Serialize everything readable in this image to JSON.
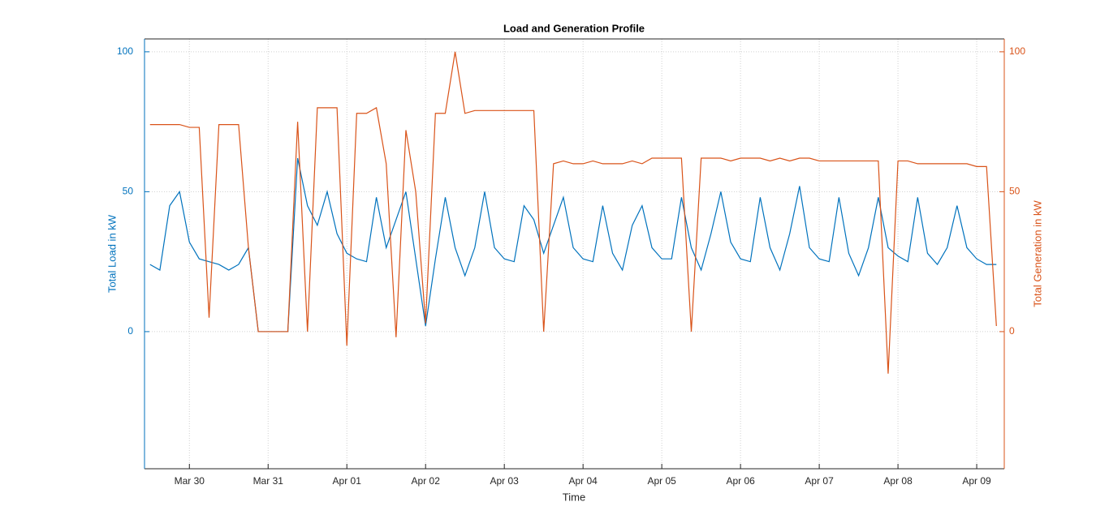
{
  "chart_data": {
    "type": "line",
    "title": "Load and Generation Profile",
    "xlabel": "Time",
    "ylabel": "Total Load in kW",
    "y2label": "Total Generation in kW",
    "x": [
      -0.5,
      -0.375,
      -0.25,
      -0.125,
      0,
      0.125,
      0.25,
      0.375,
      0.5,
      0.625,
      0.75,
      0.875,
      1,
      1.125,
      1.25,
      1.375,
      1.5,
      1.625,
      1.75,
      1.875,
      2,
      2.125,
      2.25,
      2.375,
      2.5,
      2.625,
      2.75,
      2.875,
      3,
      3.125,
      3.25,
      3.375,
      3.5,
      3.625,
      3.75,
      3.875,
      4,
      4.125,
      4.25,
      4.375,
      4.5,
      4.625,
      4.75,
      4.875,
      5,
      5.125,
      5.25,
      5.375,
      5.5,
      5.625,
      5.75,
      5.875,
      6,
      6.125,
      6.25,
      6.375,
      6.5,
      6.625,
      6.75,
      6.875,
      7,
      7.125,
      7.25,
      7.375,
      7.5,
      7.625,
      7.75,
      7.875,
      8,
      8.125,
      8.25,
      8.375,
      8.5,
      8.625,
      8.75,
      8.875,
      9,
      9.125,
      9.25,
      9.375,
      9.5,
      9.625,
      9.75,
      9.875,
      10,
      10.125,
      10.25
    ],
    "series": [
      {
        "name": "Total Load",
        "color": "#0072BD",
        "axis": "y",
        "values": [
          24,
          22,
          45,
          50,
          32,
          26,
          25,
          24,
          22,
          24,
          30,
          0,
          0,
          0,
          0,
          62,
          45,
          38,
          50,
          35,
          28,
          26,
          25,
          48,
          30,
          40,
          50,
          26,
          2,
          26,
          48,
          30,
          20,
          30,
          50,
          30,
          26,
          25,
          45,
          40,
          28,
          38,
          48,
          30,
          26,
          25,
          45,
          28,
          22,
          38,
          45,
          30,
          26,
          26,
          48,
          30,
          22,
          35,
          50,
          32,
          26,
          25,
          48,
          30,
          22,
          35,
          52,
          30,
          26,
          25,
          48,
          28,
          20,
          30,
          48,
          30,
          27,
          25,
          48,
          28,
          24,
          30,
          45,
          30,
          26,
          24,
          24
        ]
      },
      {
        "name": "Total Generation",
        "color": "#D95319",
        "axis": "y2",
        "values": [
          74,
          74,
          74,
          74,
          73,
          73,
          5,
          74,
          74,
          74,
          30,
          0,
          0,
          0,
          0,
          75,
          0,
          80,
          80,
          80,
          -5,
          78,
          78,
          80,
          60,
          -2,
          72,
          50,
          3,
          78,
          78,
          100,
          78,
          79,
          79,
          79,
          79,
          79,
          79,
          79,
          0,
          60,
          61,
          60,
          60,
          61,
          60,
          60,
          60,
          61,
          60,
          62,
          62,
          62,
          62,
          0,
          62,
          62,
          62,
          61,
          62,
          62,
          62,
          61,
          62,
          61,
          62,
          62,
          61,
          61,
          61,
          61,
          61,
          61,
          61,
          -15,
          61,
          61,
          60,
          60,
          60,
          60,
          60,
          60,
          59,
          59,
          2
        ]
      }
    ],
    "xlim": [
      -0.57,
      10.35
    ],
    "xticks": [
      {
        "value": 0,
        "label": "Mar 30"
      },
      {
        "value": 1,
        "label": "Mar 31"
      },
      {
        "value": 2,
        "label": "Apr 01"
      },
      {
        "value": 3,
        "label": "Apr 02"
      },
      {
        "value": 4,
        "label": "Apr 03"
      },
      {
        "value": 5,
        "label": "Apr 04"
      },
      {
        "value": 6,
        "label": "Apr 05"
      },
      {
        "value": 7,
        "label": "Apr 06"
      },
      {
        "value": 8,
        "label": "Apr 07"
      },
      {
        "value": 9,
        "label": "Apr 08"
      },
      {
        "value": 10,
        "label": "Apr 09"
      }
    ],
    "ylim": [
      -49,
      104.6
    ],
    "yticks": [
      0,
      50,
      100
    ],
    "y2lim": [
      -49,
      104.6
    ],
    "y2ticks": [
      0,
      50,
      100
    ],
    "grid": true
  }
}
